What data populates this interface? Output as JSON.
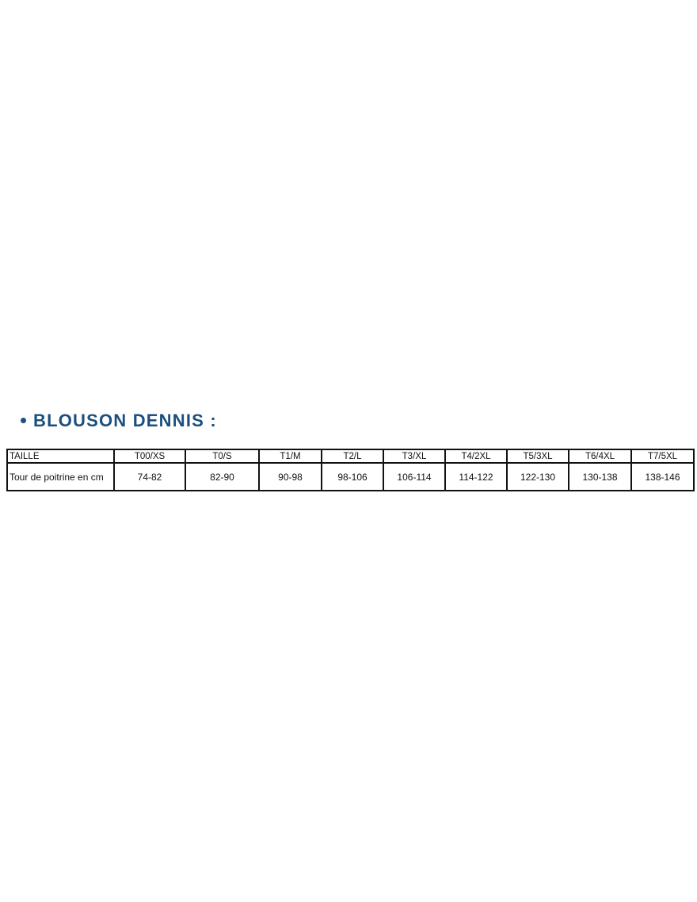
{
  "heading": {
    "text": "BLOUSON DENNIS :",
    "color": "#1b4f7e"
  },
  "table": {
    "header": [
      "TAILLE",
      "T00/XS",
      "T0/S",
      "T1/M",
      "T2/L",
      "T3/XL",
      "T4/2XL",
      "T5/3XL",
      "T6/4XL",
      "T7/5XL"
    ],
    "rows": [
      [
        "Tour de poitrine en cm",
        "74-82",
        "82-90",
        "90-98",
        "98-106",
        "106-114",
        "114-122",
        "122-130",
        "130-138",
        "138-146"
      ]
    ]
  }
}
